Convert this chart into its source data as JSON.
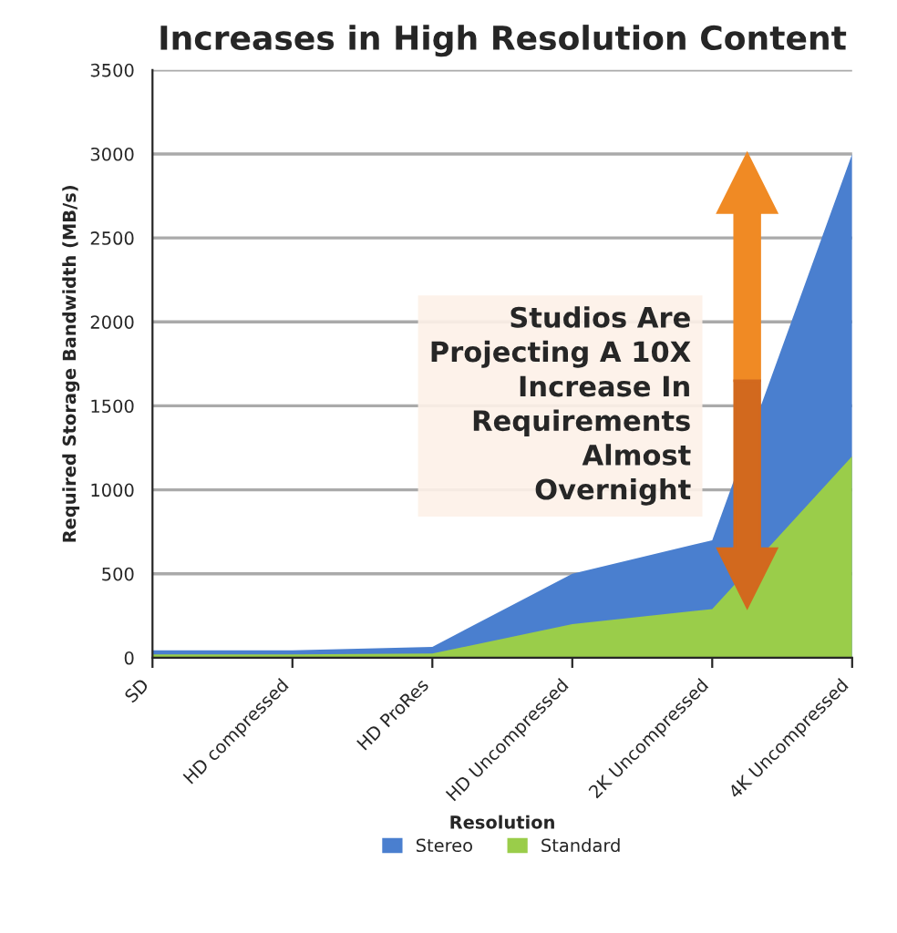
{
  "chart_data": {
    "type": "area",
    "title": "Increases in High Resolution Content",
    "xlabel": "Resolution",
    "ylabel": "Required Storage Bandwidth (MB/s)",
    "categories": [
      "SD",
      "HD compressed",
      "HD ProRes",
      "HD Uncompressed",
      "2K Uncompressed",
      "4K Uncompressed"
    ],
    "series": [
      {
        "name": "Stereo",
        "color": "#4a7fcf",
        "values": [
          45,
          45,
          65,
          500,
          700,
          3000
        ]
      },
      {
        "name": "Standard",
        "color": "#9acd4a",
        "values": [
          20,
          20,
          25,
          200,
          290,
          1200
        ]
      }
    ],
    "ylim": [
      0,
      3500
    ],
    "yticks": [
      0,
      500,
      1000,
      1500,
      2000,
      2500,
      3000,
      3500
    ],
    "grid": "y",
    "legend": "bottom",
    "annotations": [
      "Studios Are Projecting A 10X Increase In Requirements Almost Overnight"
    ]
  }
}
